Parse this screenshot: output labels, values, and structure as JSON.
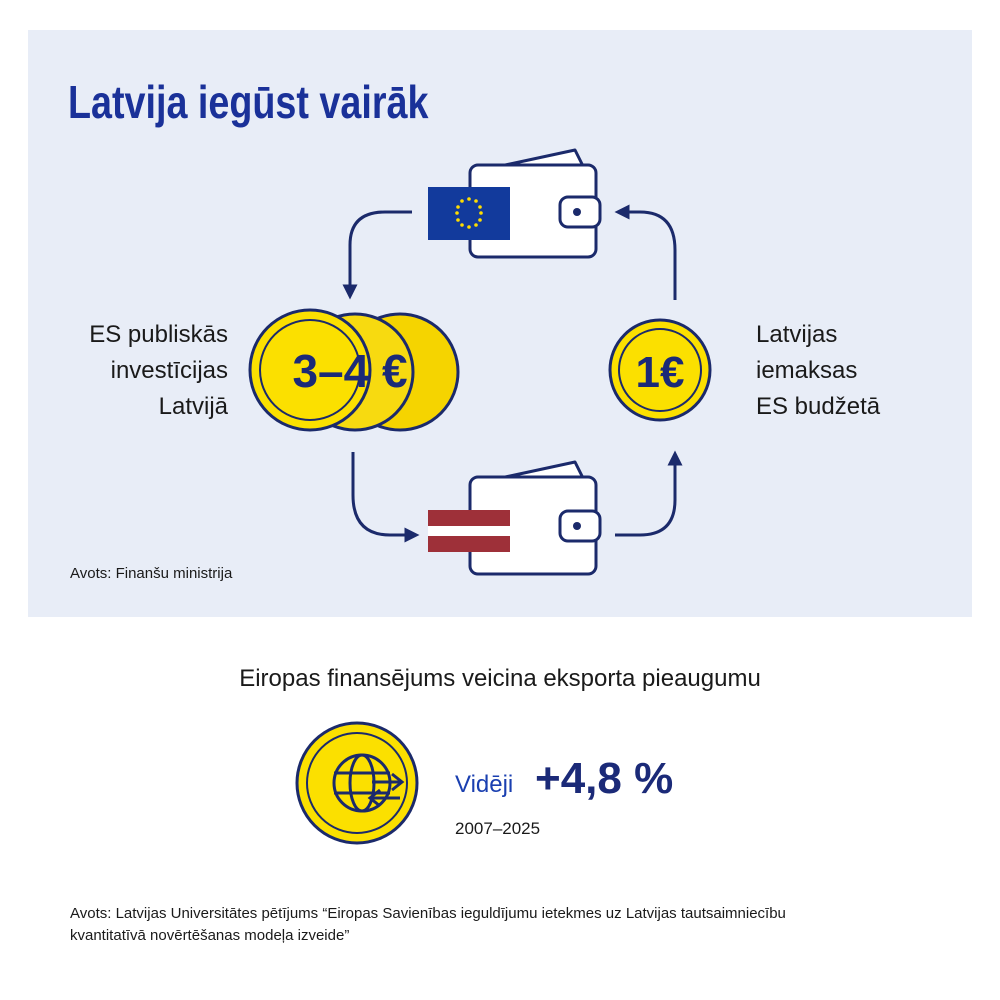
{
  "header": {
    "title": "Latvija iegūst vairāk"
  },
  "cycle": {
    "left_coin": "3–4 €",
    "left_label": [
      "ES publiskās",
      "investīcijas",
      "Latvijā"
    ],
    "right_coin": "1€",
    "right_label": [
      "Latvijas",
      "iemaksas",
      "ES budžetā"
    ],
    "source": "Avots: Finanšu ministrija"
  },
  "export": {
    "title": "Eiropas finansējums veicina eksporta pieaugumu",
    "prefix": "Vidēji",
    "value": "+4,8 %",
    "period": "2007–2025"
  },
  "footer": {
    "source": [
      "Avots: Latvijas Universitātes pētījums “Eiropas Savienības ieguldījumu ietekmes uz Latvijas tautsaimniecību",
      "kvantitatīvā novērtēšanas modeļa izveide”"
    ]
  }
}
